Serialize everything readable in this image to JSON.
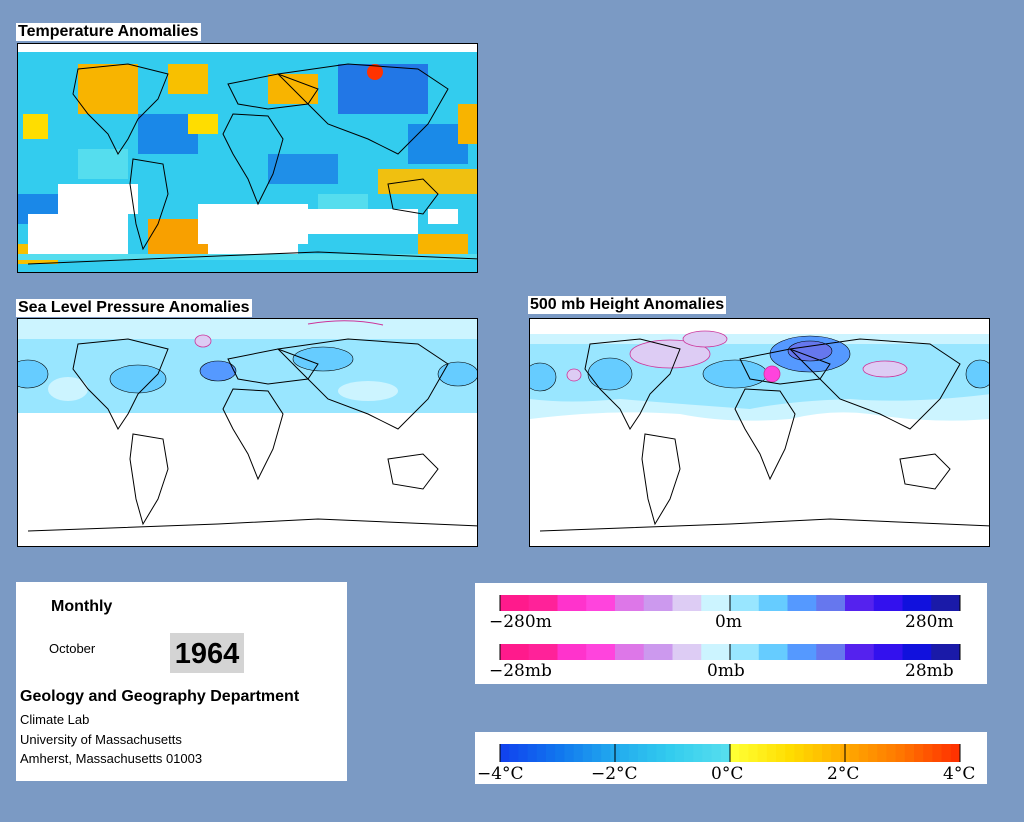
{
  "maps": {
    "temperature": {
      "title": "Temperature Anomalies"
    },
    "pressure": {
      "title": "Sea Level Pressure Anomalies"
    },
    "height": {
      "title": "500 mb Height Anomalies"
    }
  },
  "info": {
    "period": "Monthly",
    "month": "October",
    "year": "1964",
    "department": "Geology and Geography Department",
    "address_lines": [
      "Climate Lab",
      "University of Massachusetts",
      "Amherst, Massachusetts 01003"
    ]
  },
  "legends": {
    "height": {
      "labels": [
        "−280m",
        "0m",
        "280m"
      ]
    },
    "pressure": {
      "labels": [
        "−28mb",
        "0mb",
        "28mb"
      ]
    },
    "temperature": {
      "labels": [
        "−4°C",
        "−2°C",
        "0°C",
        "2°C",
        "4°C"
      ]
    }
  },
  "colors": {
    "background": "#7b9ac4",
    "anomaly_scale_pressure": [
      "#ff1a8c",
      "#ff2299",
      "#ff33cc",
      "#ff44dd",
      "#dd77e8",
      "#cc99ee",
      "#ddccf4",
      "#ccf4ff",
      "#99e6ff",
      "#66ccff",
      "#5599ff",
      "#6677ee",
      "#5522ee",
      "#3311ee",
      "#1111dd",
      "#1a1aa8"
    ],
    "anomaly_scale_temperature": [
      "#1144ee",
      "#1177ee",
      "#22aaee",
      "#33ccee",
      "#55ddee",
      "#ffff33",
      "#ffdd00",
      "#ffaa00",
      "#ff7700",
      "#ff3300"
    ]
  }
}
